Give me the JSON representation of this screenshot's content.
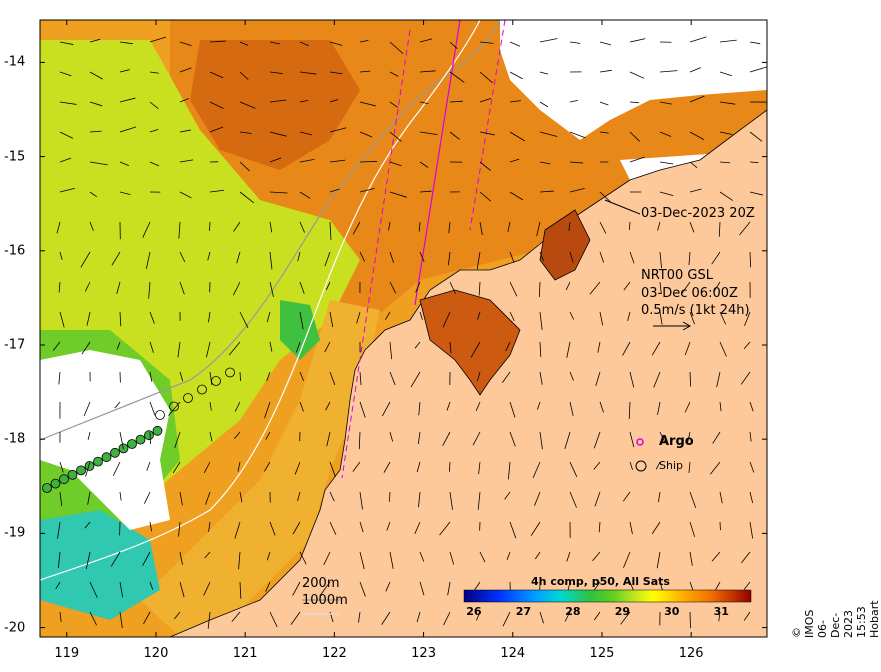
{
  "map": {
    "timestamp_label": "03-Dec-2023 20Z",
    "current_product": "NRT00 GSL",
    "current_time": "03-Dec 06:00Z",
    "vector_scale": "0.5m/s (1kt 24h)",
    "legend": {
      "argo_label": "Argo",
      "ship_label": "Ship"
    },
    "isobath_labels": [
      "200m",
      "1000m"
    ],
    "colorbar": {
      "title": "4h comp, p50, All Sats",
      "ticks": [
        "26",
        "27",
        "28",
        "29",
        "30",
        "31"
      ],
      "range": [
        25.8,
        31.6
      ],
      "colors": [
        "#000080",
        "#0000ff",
        "#00a0ff",
        "#00e0e0",
        "#30c050",
        "#50d020",
        "#a0e030",
        "#ffff00",
        "#ffc000",
        "#ff8000",
        "#e05000",
        "#a01000"
      ]
    },
    "x_ticks": [
      "119",
      "120",
      "121",
      "122",
      "123",
      "124",
      "125",
      "126"
    ],
    "y_ticks": [
      "-14",
      "-15",
      "-16",
      "-17",
      "-18",
      "-19",
      "-20"
    ],
    "x_range": [
      118.7,
      126.85
    ],
    "y_range": [
      -20.1,
      -13.55
    ],
    "credit": "© IMOS 06-Dec-2023 15:53 Hobart",
    "colors": {
      "land": "#fdc89a",
      "cloud": "#ffffff",
      "argo_track": "#dd00dd"
    }
  }
}
